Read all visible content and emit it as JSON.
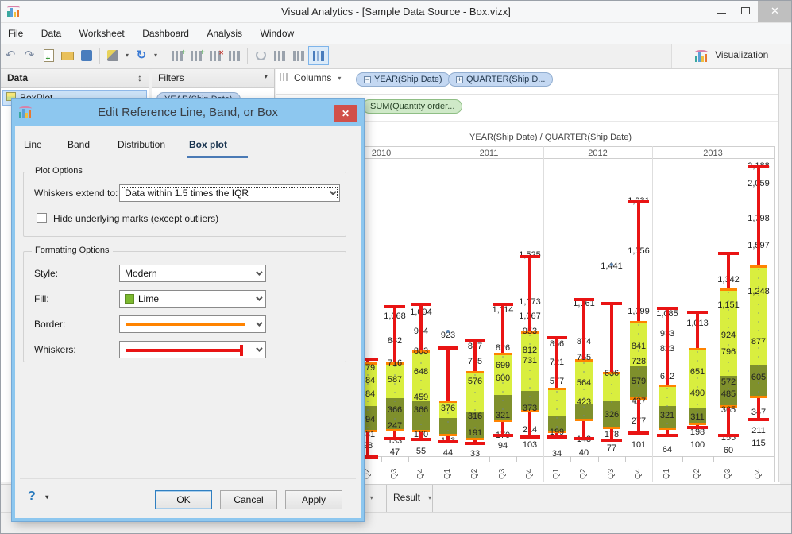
{
  "window": {
    "title": "Visual Analytics - [Sample Data Source - Box.vizx]"
  },
  "menu": {
    "items": [
      "File",
      "Data",
      "Worksheet",
      "Dashboard",
      "Analysis",
      "Window"
    ]
  },
  "toolbar": {
    "visualization_label": "Visualization"
  },
  "panels": {
    "data": {
      "title": "Data",
      "sheet": "BoxPlot"
    },
    "filters": {
      "title": "Filters",
      "pill": "YEAR(Ship Date)"
    },
    "columns": {
      "title": "Columns",
      "pills": [
        {
          "prefix": "−",
          "label": "YEAR(Ship Date)"
        },
        {
          "prefix": "+",
          "label": "QUARTER(Ship D..."
        }
      ]
    },
    "rows": {
      "pill": "SUM(Quantity order..."
    }
  },
  "dialog": {
    "title": "Edit Reference Line, Band, or Box",
    "close_glyph": "✕",
    "tabs": [
      {
        "label": "Line"
      },
      {
        "label": "Band"
      },
      {
        "label": "Distribution"
      },
      {
        "label": "Box plot"
      }
    ],
    "plot_options": {
      "legend": "Plot Options",
      "whiskers_label": "Whiskers extend to:",
      "whiskers_value": "Data within 1.5 times the IQR",
      "hide_marks_label": "Hide underlying marks (except outliers)",
      "hide_marks_checked": false
    },
    "formatting_options": {
      "legend": "Formatting Options",
      "style_label": "Style:",
      "style_value": "Modern",
      "fill_label": "Fill:",
      "fill_value": "Lime",
      "fill_swatch_color": "#7cb92f",
      "border_label": "Border:",
      "border_color": "#ff8300",
      "whiskers_label": "Whiskers:",
      "whiskers_color": "#e91414"
    },
    "help_label": "?",
    "buttons": {
      "ok": "OK",
      "cancel": "Cancel",
      "apply": "Apply"
    }
  },
  "statusbar": {
    "tabs": [
      {
        "label": "g"
      },
      {
        "label": "Result"
      }
    ]
  },
  "chart_data": {
    "type": "box",
    "title": "YEAR(Ship Date) / QUARTER(Ship Date)",
    "ylim": [
      0,
      2300
    ],
    "grid": false,
    "colors": {
      "fill_upper": "#d9ee3f",
      "fill_lower": "#7f902c",
      "border": "#ff8300",
      "whisker": "#e91414"
    },
    "years": [
      {
        "year": "2010",
        "quarters": [
          {
            "q": "Q1",
            "box": null,
            "mark_labels": []
          },
          {
            "q": "Q2",
            "box": {
              "whisker_top": 750,
              "box_top": 725,
              "median": 400,
              "box_bottom": 200,
              "whisker_bottom": 15
            },
            "mark_labels": [
              679,
              584,
              484,
              294,
              181,
              98
            ]
          },
          {
            "q": "Q3",
            "box": {
              "whisker_top": 1140,
              "box_top": 727,
              "median": 460,
              "box_bottom": 210,
              "whisker_bottom": 155
            },
            "mark_labels": [
              1068,
              882,
              716,
              587,
              366,
              247,
              133,
              47
            ]
          },
          {
            "q": "Q4",
            "box": {
              "whisker_top": 1160,
              "box_top": 815,
              "median": 440,
              "box_bottom": 205,
              "whisker_bottom": 150
            },
            "mark_labels": [
              1094,
              954,
              803,
              648,
              459,
              366,
              180,
              55
            ]
          }
        ]
      },
      {
        "year": "2011",
        "quarters": [
          {
            "q": "Q1",
            "outlier": 960,
            "box": {
              "whisker_top": 835,
              "box_top": 440,
              "median": 310,
              "box_bottom": 170,
              "whisker_bottom": 130
            },
            "mark_labels": [
              923,
              376,
              133,
              44
            ]
          },
          {
            "q": "Q2",
            "box": {
              "whisker_top": 885,
              "box_top": 660,
              "median": 357,
              "box_bottom": 145,
              "whisker_bottom": 120
            },
            "mark_labels": [
              837,
              725,
              576,
              316,
              191,
              33
            ]
          },
          {
            "q": "Q3",
            "box": {
              "whisker_top": 1160,
              "box_top": 798,
              "median": 482,
              "box_bottom": 280,
              "whisker_bottom": 180
            },
            "mark_labels": [
              1114,
              826,
              699,
              600,
              321,
              170,
              94
            ]
          },
          {
            "q": "Q4",
            "box": {
              "whisker_top": 1515,
              "box_top": 958,
              "median": 512,
              "box_bottom": 350,
              "whisker_bottom": 167
            },
            "mark_labels": [
              1525,
              1173,
              1067,
              953,
              812,
              731,
              373,
              214,
              103
            ]
          }
        ]
      },
      {
        "year": "2012",
        "quarters": [
          {
            "q": "Q1",
            "box": {
              "whisker_top": 910,
              "box_top": 536,
              "median": 321,
              "box_bottom": 196,
              "whisker_bottom": 167
            },
            "mark_labels": [
              856,
              721,
              577,
              199,
              34
            ]
          },
          {
            "q": "Q2",
            "box": {
              "whisker_top": 1195,
              "box_top": 750,
              "median": 417,
              "box_bottom": 286,
              "whisker_bottom": 155
            },
            "mark_labels": [
              1161,
              874,
              755,
              564,
              423,
              143,
              40
            ]
          },
          {
            "q": "Q3",
            "outlier": 1458,
            "box": {
              "whisker_top": 1165,
              "box_top": 655,
              "median": 435,
              "box_bottom": 226,
              "whisker_bottom": 143
            },
            "mark_labels": [
              1441,
              636,
              326,
              178,
              77
            ]
          },
          {
            "q": "Q4",
            "box": {
              "whisker_top": 1931,
              "box_top": 1036,
              "median": 702,
              "box_bottom": 446,
              "whisker_bottom": 196
            },
            "mark_labels": [
              1931,
              1556,
              1099,
              841,
              728,
              579,
              427,
              277,
              101
            ]
          }
        ]
      },
      {
        "year": "2013",
        "quarters": [
          {
            "q": "Q1",
            "box": {
              "whisker_top": 1130,
              "box_top": 560,
              "median": 400,
              "box_bottom": 220,
              "whisker_bottom": 180
            },
            "mark_labels": [
              1085,
              933,
              823,
              612,
              321,
              64
            ]
          },
          {
            "q": "Q2",
            "box": {
              "whisker_top": 1100,
              "box_top": 833,
              "median": 387,
              "box_bottom": 256,
              "whisker_bottom": 238
            },
            "mark_labels": [
              1013,
              651,
              490,
              311,
              198,
              100
            ]
          },
          {
            "q": "Q3",
            "box": {
              "whisker_top": 1540,
              "box_top": 1280,
              "median": 625,
              "box_bottom": 387,
              "whisker_bottom": 180
            },
            "mark_labels": [
              1342,
              1151,
              924,
              796,
              572,
              485,
              365,
              155,
              60
            ]
          },
          {
            "q": "Q4",
            "box": {
              "whisker_top": 2188,
              "box_top": 1452,
              "median": 708,
              "box_bottom": 458,
              "whisker_bottom": 298
            },
            "mark_labels": [
              2188,
              2059,
              1798,
              1597,
              1248,
              877,
              605,
              347,
              211,
              115
            ]
          }
        ]
      }
    ]
  }
}
